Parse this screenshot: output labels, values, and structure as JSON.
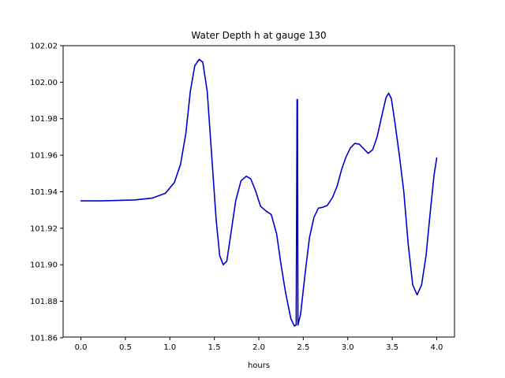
{
  "chart_data": {
    "type": "line",
    "title": "Water Depth h at gauge 130",
    "xlabel": "hours",
    "ylabel": "",
    "xlim": [
      -0.2,
      4.2
    ],
    "ylim": [
      101.8604,
      102.02
    ],
    "xticks": [
      0.0,
      0.5,
      1.0,
      1.5,
      2.0,
      2.5,
      3.0,
      3.5,
      4.0
    ],
    "xtick_labels": [
      "0.0",
      "0.5",
      "1.0",
      "1.5",
      "2.0",
      "2.5",
      "3.0",
      "3.5",
      "4.0"
    ],
    "yticks": [
      101.86,
      101.88,
      101.9,
      101.92,
      101.94,
      101.96,
      101.98,
      102.0,
      102.02
    ],
    "ytick_labels": [
      "101.86",
      "101.88",
      "101.90",
      "101.92",
      "101.94",
      "101.96",
      "101.98",
      "102.00",
      "102.02"
    ],
    "grid": false,
    "series": [
      {
        "color": "#0000cc",
        "points": [
          [
            0.0,
            101.935
          ],
          [
            0.2,
            101.935
          ],
          [
            0.4,
            101.9352
          ],
          [
            0.6,
            101.9355
          ],
          [
            0.8,
            101.9365
          ],
          [
            0.95,
            101.9392
          ],
          [
            1.05,
            101.945
          ],
          [
            1.12,
            101.955
          ],
          [
            1.18,
            101.972
          ],
          [
            1.23,
            101.995
          ],
          [
            1.28,
            102.009
          ],
          [
            1.33,
            102.0125
          ],
          [
            1.37,
            102.011
          ],
          [
            1.42,
            101.995
          ],
          [
            1.47,
            101.96
          ],
          [
            1.52,
            101.925
          ],
          [
            1.56,
            101.905
          ],
          [
            1.6,
            101.9
          ],
          [
            1.64,
            101.902
          ],
          [
            1.68,
            101.915
          ],
          [
            1.74,
            101.935
          ],
          [
            1.8,
            101.946
          ],
          [
            1.86,
            101.9485
          ],
          [
            1.91,
            101.947
          ],
          [
            1.96,
            101.941
          ],
          [
            2.02,
            101.932
          ],
          [
            2.08,
            101.9295
          ],
          [
            2.14,
            101.9275
          ],
          [
            2.2,
            101.917
          ],
          [
            2.25,
            101.9
          ],
          [
            2.3,
            101.885
          ],
          [
            2.36,
            101.8705
          ],
          [
            2.4,
            101.8665
          ],
          [
            2.42,
            101.867
          ],
          [
            2.43,
            101.9905
          ],
          [
            2.435,
            101.9905
          ],
          [
            2.44,
            101.867
          ],
          [
            2.47,
            101.873
          ],
          [
            2.52,
            101.895
          ],
          [
            2.57,
            101.915
          ],
          [
            2.62,
            101.926
          ],
          [
            2.67,
            101.931
          ],
          [
            2.72,
            101.9315
          ],
          [
            2.77,
            101.9325
          ],
          [
            2.83,
            101.937
          ],
          [
            2.88,
            101.943
          ],
          [
            2.93,
            101.952
          ],
          [
            2.98,
            101.959
          ],
          [
            3.03,
            101.964
          ],
          [
            3.08,
            101.9665
          ],
          [
            3.13,
            101.966
          ],
          [
            3.18,
            101.9635
          ],
          [
            3.23,
            101.961
          ],
          [
            3.28,
            101.963
          ],
          [
            3.33,
            101.97
          ],
          [
            3.38,
            101.981
          ],
          [
            3.43,
            101.9915
          ],
          [
            3.46,
            101.994
          ],
          [
            3.49,
            101.991
          ],
          [
            3.53,
            101.978
          ],
          [
            3.58,
            101.96
          ],
          [
            3.63,
            101.94
          ],
          [
            3.68,
            101.911
          ],
          [
            3.73,
            101.889
          ],
          [
            3.78,
            101.8835
          ],
          [
            3.83,
            101.889
          ],
          [
            3.88,
            101.905
          ],
          [
            3.93,
            101.93
          ],
          [
            3.97,
            101.949
          ],
          [
            4.0,
            101.9585
          ]
        ]
      }
    ]
  }
}
